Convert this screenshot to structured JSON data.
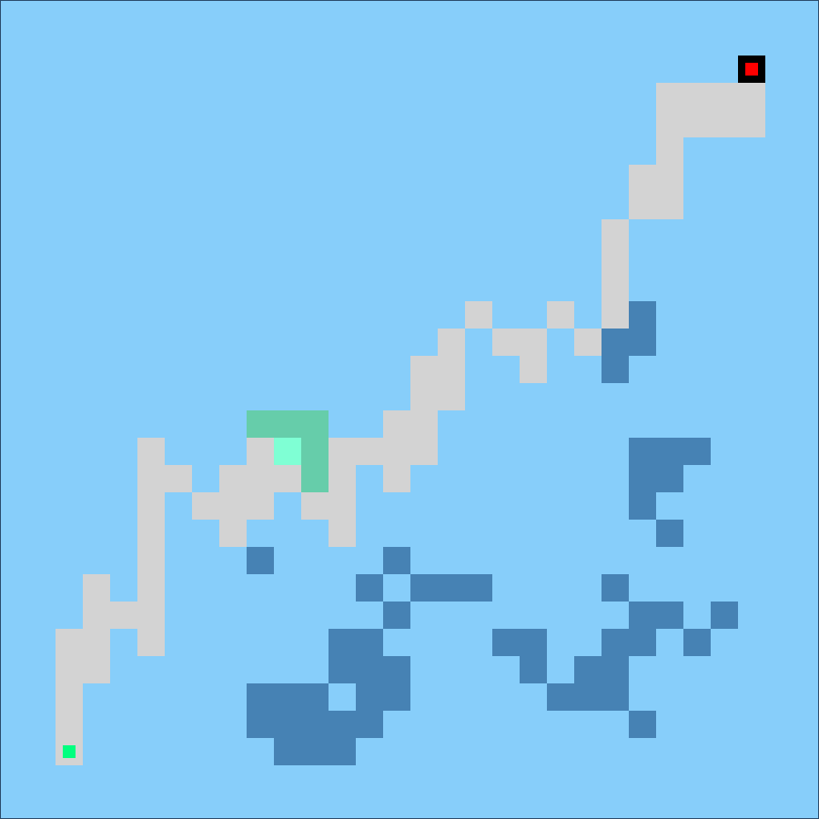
{
  "grid": {
    "cols": 30,
    "rows": 30
  },
  "colors": {
    "water": "#87cefa",
    "path": "#d3d3d3",
    "deep_water": "#4682b4",
    "zone": "#66cdaa",
    "zone_core": "#7fffd4",
    "goal_border": "#000000",
    "goal": "#ff0000",
    "player": "#00ff7f"
  },
  "path_cells": [
    [
      24,
      3
    ],
    [
      25,
      3
    ],
    [
      26,
      3
    ],
    [
      27,
      3
    ],
    [
      24,
      4
    ],
    [
      25,
      4
    ],
    [
      26,
      4
    ],
    [
      27,
      4
    ],
    [
      24,
      5
    ],
    [
      23,
      6
    ],
    [
      24,
      6
    ],
    [
      23,
      7
    ],
    [
      24,
      7
    ],
    [
      22,
      8
    ],
    [
      22,
      9
    ],
    [
      22,
      10
    ],
    [
      22,
      11
    ],
    [
      17,
      11
    ],
    [
      20,
      11
    ],
    [
      16,
      12
    ],
    [
      18,
      12
    ],
    [
      19,
      12
    ],
    [
      21,
      12
    ],
    [
      16,
      13
    ],
    [
      19,
      13
    ],
    [
      15,
      13
    ],
    [
      15,
      14
    ],
    [
      16,
      14
    ],
    [
      14,
      15
    ],
    [
      15,
      15
    ],
    [
      9,
      16
    ],
    [
      14,
      16
    ],
    [
      15,
      16
    ],
    [
      5,
      16
    ],
    [
      12,
      16
    ],
    [
      13,
      16
    ],
    [
      5,
      17
    ],
    [
      6,
      17
    ],
    [
      8,
      17
    ],
    [
      9,
      17
    ],
    [
      10,
      17
    ],
    [
      12,
      17
    ],
    [
      14,
      17
    ],
    [
      5,
      18
    ],
    [
      7,
      18
    ],
    [
      8,
      18
    ],
    [
      9,
      18
    ],
    [
      11,
      18
    ],
    [
      12,
      18
    ],
    [
      5,
      19
    ],
    [
      8,
      19
    ],
    [
      12,
      19
    ],
    [
      5,
      20
    ],
    [
      3,
      21
    ],
    [
      5,
      21
    ],
    [
      3,
      22
    ],
    [
      4,
      22
    ],
    [
      5,
      22
    ],
    [
      2,
      23
    ],
    [
      3,
      23
    ],
    [
      5,
      23
    ],
    [
      2,
      24
    ],
    [
      3,
      24
    ],
    [
      2,
      25
    ],
    [
      2,
      26
    ],
    [
      2,
      27
    ]
  ],
  "deep_cells": [
    [
      23,
      11
    ],
    [
      22,
      12
    ],
    [
      23,
      12
    ],
    [
      22,
      13
    ],
    [
      23,
      16
    ],
    [
      24,
      16
    ],
    [
      25,
      16
    ],
    [
      23,
      17
    ],
    [
      24,
      17
    ],
    [
      23,
      18
    ],
    [
      24,
      19
    ],
    [
      9,
      20
    ],
    [
      14,
      20
    ],
    [
      13,
      21
    ],
    [
      15,
      21
    ],
    [
      16,
      21
    ],
    [
      17,
      21
    ],
    [
      22,
      21
    ],
    [
      14,
      22
    ],
    [
      23,
      22
    ],
    [
      24,
      22
    ],
    [
      26,
      22
    ],
    [
      12,
      23
    ],
    [
      13,
      23
    ],
    [
      18,
      23
    ],
    [
      19,
      23
    ],
    [
      22,
      23
    ],
    [
      23,
      23
    ],
    [
      25,
      23
    ],
    [
      12,
      24
    ],
    [
      13,
      24
    ],
    [
      14,
      24
    ],
    [
      19,
      24
    ],
    [
      21,
      24
    ],
    [
      22,
      24
    ],
    [
      9,
      25
    ],
    [
      10,
      25
    ],
    [
      11,
      25
    ],
    [
      13,
      25
    ],
    [
      14,
      25
    ],
    [
      20,
      25
    ],
    [
      21,
      25
    ],
    [
      22,
      25
    ],
    [
      9,
      26
    ],
    [
      10,
      26
    ],
    [
      11,
      26
    ],
    [
      12,
      26
    ],
    [
      13,
      26
    ],
    [
      23,
      26
    ],
    [
      10,
      27
    ],
    [
      11,
      27
    ],
    [
      12,
      27
    ]
  ],
  "zone_cells": [
    [
      9,
      15
    ],
    [
      10,
      15
    ],
    [
      11,
      15
    ],
    [
      11,
      16
    ],
    [
      11,
      17
    ]
  ],
  "zone_core_cells": [
    [
      10,
      16
    ]
  ],
  "goal_cell": [
    27,
    2
  ],
  "player_cell": [
    2,
    27
  ]
}
